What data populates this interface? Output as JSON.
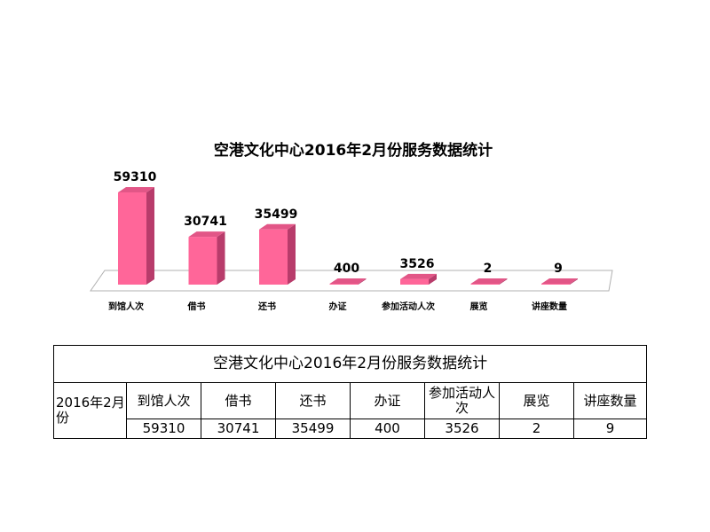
{
  "chart_data": {
    "type": "bar",
    "title": "空港文化中心2016年2月份服务数据统计",
    "categories": [
      "到馆人次",
      "借书",
      "还书",
      "办证",
      "参加活动人次",
      "展览",
      "讲座数量"
    ],
    "values": [
      59310,
      30741,
      35499,
      400,
      3526,
      2,
      9
    ],
    "ylim": [
      0,
      59310
    ],
    "grid": false,
    "legend": "none",
    "colors": {
      "bar_front": "#ff6699",
      "bar_side": "#b83c6b",
      "bar_top": "#e25687",
      "floor": "#ffffff",
      "floor_edge": "#b0b0b0"
    }
  },
  "table": {
    "title": "空港文化中心2016年2月份服务数据统计",
    "row_label": "2016年2月份",
    "headers": [
      "到馆人次",
      "借书",
      "还书",
      "办证",
      "参加活动人次",
      "展览",
      "讲座数量"
    ],
    "values": [
      "59310",
      "30741",
      "35499",
      "400",
      "3526",
      "2",
      "9"
    ]
  }
}
